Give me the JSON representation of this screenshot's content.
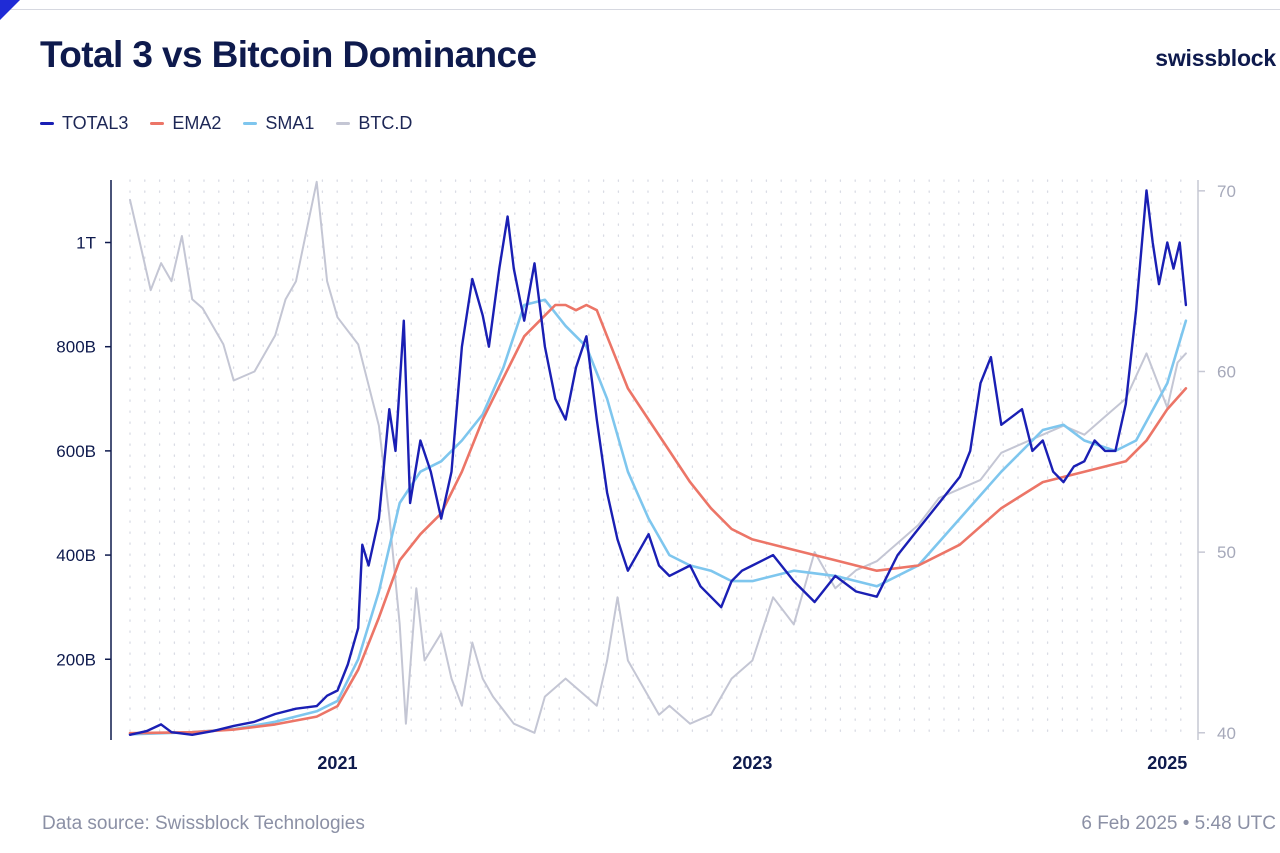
{
  "header": {
    "title": "Total 3 vs Bitcoin Dominance",
    "brand": "swissblock"
  },
  "footer": {
    "source": "Data source: Swissblock Technologies",
    "timestamp": "6 Feb 2025 • 5:48 UTC"
  },
  "colors": {
    "total3": "#1a1fb4",
    "ema2": "#ec7567",
    "sma1": "#7ec6ee",
    "btcd": "#c4c6d4"
  },
  "chart_data": {
    "type": "line",
    "title": "Total 3 vs Bitcoin Dominance",
    "legend_position": "top-left",
    "legend": [
      {
        "key": "total3",
        "label": "TOTAL3"
      },
      {
        "key": "ema2",
        "label": "EMA2"
      },
      {
        "key": "sma1",
        "label": "SMA1"
      },
      {
        "key": "btcd",
        "label": "BTC.D"
      }
    ],
    "x_range": [
      2020.0,
      2025.1
    ],
    "x_ticks": [
      {
        "value": 2021.0,
        "label": "2021"
      },
      {
        "value": 2023.0,
        "label": "2023"
      },
      {
        "value": 2025.0,
        "label": "2025"
      }
    ],
    "y_left": {
      "range": [
        45,
        1120
      ],
      "unit": "B USD",
      "ticks": [
        {
          "value": 200,
          "label": "200B"
        },
        {
          "value": 400,
          "label": "400B"
        },
        {
          "value": 600,
          "label": "600B"
        },
        {
          "value": 800,
          "label": "800B"
        },
        {
          "value": 1000,
          "label": "1T"
        }
      ]
    },
    "y_right": {
      "range": [
        39.6,
        70.6
      ],
      "unit": "%",
      "ticks": [
        {
          "value": 40,
          "label": "40"
        },
        {
          "value": 50,
          "label": "50"
        },
        {
          "value": 60,
          "label": "60"
        },
        {
          "value": 70,
          "label": "70"
        }
      ]
    },
    "series": [
      {
        "name": "TOTAL3",
        "key": "total3",
        "axis": "left",
        "points": [
          [
            2020.0,
            55
          ],
          [
            2020.08,
            62
          ],
          [
            2020.15,
            75
          ],
          [
            2020.2,
            60
          ],
          [
            2020.3,
            55
          ],
          [
            2020.4,
            62
          ],
          [
            2020.5,
            72
          ],
          [
            2020.6,
            80
          ],
          [
            2020.7,
            95
          ],
          [
            2020.8,
            105
          ],
          [
            2020.9,
            110
          ],
          [
            2020.95,
            130
          ],
          [
            2021.0,
            140
          ],
          [
            2021.05,
            190
          ],
          [
            2021.1,
            260
          ],
          [
            2021.12,
            420
          ],
          [
            2021.15,
            380
          ],
          [
            2021.2,
            470
          ],
          [
            2021.25,
            680
          ],
          [
            2021.28,
            600
          ],
          [
            2021.32,
            850
          ],
          [
            2021.35,
            500
          ],
          [
            2021.4,
            620
          ],
          [
            2021.45,
            560
          ],
          [
            2021.5,
            470
          ],
          [
            2021.55,
            560
          ],
          [
            2021.6,
            800
          ],
          [
            2021.65,
            930
          ],
          [
            2021.7,
            860
          ],
          [
            2021.73,
            800
          ],
          [
            2021.78,
            950
          ],
          [
            2021.82,
            1050
          ],
          [
            2021.85,
            950
          ],
          [
            2021.9,
            850
          ],
          [
            2021.95,
            960
          ],
          [
            2022.0,
            800
          ],
          [
            2022.05,
            700
          ],
          [
            2022.1,
            660
          ],
          [
            2022.15,
            760
          ],
          [
            2022.2,
            820
          ],
          [
            2022.25,
            660
          ],
          [
            2022.3,
            520
          ],
          [
            2022.35,
            430
          ],
          [
            2022.4,
            370
          ],
          [
            2022.5,
            440
          ],
          [
            2022.55,
            380
          ],
          [
            2022.6,
            360
          ],
          [
            2022.7,
            380
          ],
          [
            2022.75,
            340
          ],
          [
            2022.85,
            300
          ],
          [
            2022.9,
            350
          ],
          [
            2022.95,
            370
          ],
          [
            2023.0,
            380
          ],
          [
            2023.1,
            400
          ],
          [
            2023.2,
            350
          ],
          [
            2023.3,
            310
          ],
          [
            2023.4,
            360
          ],
          [
            2023.5,
            330
          ],
          [
            2023.6,
            320
          ],
          [
            2023.7,
            400
          ],
          [
            2023.8,
            450
          ],
          [
            2023.9,
            500
          ],
          [
            2024.0,
            550
          ],
          [
            2024.05,
            600
          ],
          [
            2024.1,
            730
          ],
          [
            2024.15,
            780
          ],
          [
            2024.2,
            650
          ],
          [
            2024.3,
            680
          ],
          [
            2024.35,
            600
          ],
          [
            2024.4,
            620
          ],
          [
            2024.45,
            560
          ],
          [
            2024.5,
            540
          ],
          [
            2024.55,
            570
          ],
          [
            2024.6,
            580
          ],
          [
            2024.65,
            620
          ],
          [
            2024.7,
            600
          ],
          [
            2024.75,
            600
          ],
          [
            2024.8,
            690
          ],
          [
            2024.85,
            870
          ],
          [
            2024.9,
            1100
          ],
          [
            2024.93,
            1000
          ],
          [
            2024.96,
            920
          ],
          [
            2025.0,
            1000
          ],
          [
            2025.03,
            950
          ],
          [
            2025.06,
            1000
          ],
          [
            2025.09,
            880
          ]
        ]
      },
      {
        "name": "EMA2",
        "key": "ema2",
        "axis": "left",
        "points": [
          [
            2020.0,
            58
          ],
          [
            2020.3,
            60
          ],
          [
            2020.5,
            65
          ],
          [
            2020.7,
            75
          ],
          [
            2020.9,
            90
          ],
          [
            2021.0,
            110
          ],
          [
            2021.1,
            180
          ],
          [
            2021.2,
            280
          ],
          [
            2021.3,
            390
          ],
          [
            2021.4,
            440
          ],
          [
            2021.5,
            480
          ],
          [
            2021.6,
            560
          ],
          [
            2021.7,
            660
          ],
          [
            2021.8,
            740
          ],
          [
            2021.9,
            820
          ],
          [
            2022.0,
            860
          ],
          [
            2022.05,
            880
          ],
          [
            2022.1,
            880
          ],
          [
            2022.15,
            870
          ],
          [
            2022.2,
            880
          ],
          [
            2022.25,
            870
          ],
          [
            2022.3,
            820
          ],
          [
            2022.4,
            720
          ],
          [
            2022.5,
            660
          ],
          [
            2022.6,
            600
          ],
          [
            2022.7,
            540
          ],
          [
            2022.8,
            490
          ],
          [
            2022.9,
            450
          ],
          [
            2023.0,
            430
          ],
          [
            2023.2,
            410
          ],
          [
            2023.4,
            390
          ],
          [
            2023.6,
            370
          ],
          [
            2023.8,
            380
          ],
          [
            2024.0,
            420
          ],
          [
            2024.2,
            490
          ],
          [
            2024.4,
            540
          ],
          [
            2024.6,
            560
          ],
          [
            2024.8,
            580
          ],
          [
            2024.9,
            620
          ],
          [
            2025.0,
            680
          ],
          [
            2025.09,
            720
          ]
        ]
      },
      {
        "name": "SMA1",
        "key": "sma1",
        "axis": "left",
        "points": [
          [
            2020.0,
            56
          ],
          [
            2020.3,
            60
          ],
          [
            2020.5,
            66
          ],
          [
            2020.7,
            80
          ],
          [
            2020.9,
            100
          ],
          [
            2021.0,
            120
          ],
          [
            2021.1,
            200
          ],
          [
            2021.2,
            330
          ],
          [
            2021.3,
            500
          ],
          [
            2021.4,
            560
          ],
          [
            2021.5,
            580
          ],
          [
            2021.6,
            620
          ],
          [
            2021.7,
            670
          ],
          [
            2021.8,
            760
          ],
          [
            2021.9,
            880
          ],
          [
            2022.0,
            890
          ],
          [
            2022.1,
            840
          ],
          [
            2022.2,
            800
          ],
          [
            2022.3,
            700
          ],
          [
            2022.4,
            560
          ],
          [
            2022.5,
            470
          ],
          [
            2022.6,
            400
          ],
          [
            2022.7,
            380
          ],
          [
            2022.8,
            370
          ],
          [
            2022.9,
            350
          ],
          [
            2023.0,
            350
          ],
          [
            2023.2,
            370
          ],
          [
            2023.4,
            360
          ],
          [
            2023.6,
            340
          ],
          [
            2023.8,
            380
          ],
          [
            2024.0,
            470
          ],
          [
            2024.2,
            560
          ],
          [
            2024.4,
            640
          ],
          [
            2024.5,
            650
          ],
          [
            2024.6,
            620
          ],
          [
            2024.75,
            600
          ],
          [
            2024.85,
            620
          ],
          [
            2025.0,
            730
          ],
          [
            2025.09,
            850
          ]
        ]
      },
      {
        "name": "BTC.D",
        "key": "btcd",
        "axis": "right",
        "points": [
          [
            2020.0,
            69.5
          ],
          [
            2020.05,
            67
          ],
          [
            2020.1,
            64.5
          ],
          [
            2020.15,
            66
          ],
          [
            2020.2,
            65
          ],
          [
            2020.25,
            67.5
          ],
          [
            2020.3,
            64
          ],
          [
            2020.35,
            63.5
          ],
          [
            2020.45,
            61.5
          ],
          [
            2020.5,
            59.5
          ],
          [
            2020.6,
            60
          ],
          [
            2020.7,
            62
          ],
          [
            2020.75,
            64
          ],
          [
            2020.8,
            65
          ],
          [
            2020.9,
            70.5
          ],
          [
            2020.95,
            65
          ],
          [
            2021.0,
            63
          ],
          [
            2021.1,
            61.5
          ],
          [
            2021.2,
            57
          ],
          [
            2021.25,
            52
          ],
          [
            2021.3,
            46
          ],
          [
            2021.33,
            40.5
          ],
          [
            2021.38,
            48
          ],
          [
            2021.42,
            44
          ],
          [
            2021.5,
            45.5
          ],
          [
            2021.55,
            43
          ],
          [
            2021.6,
            41.5
          ],
          [
            2021.65,
            45
          ],
          [
            2021.7,
            43
          ],
          [
            2021.75,
            42
          ],
          [
            2021.85,
            40.5
          ],
          [
            2021.95,
            40
          ],
          [
            2022.0,
            42
          ],
          [
            2022.1,
            43
          ],
          [
            2022.2,
            42
          ],
          [
            2022.25,
            41.5
          ],
          [
            2022.3,
            44
          ],
          [
            2022.35,
            47.5
          ],
          [
            2022.4,
            44
          ],
          [
            2022.5,
            42
          ],
          [
            2022.55,
            41
          ],
          [
            2022.6,
            41.5
          ],
          [
            2022.7,
            40.5
          ],
          [
            2022.8,
            41
          ],
          [
            2022.9,
            43
          ],
          [
            2023.0,
            44
          ],
          [
            2023.1,
            47.5
          ],
          [
            2023.2,
            46
          ],
          [
            2023.3,
            50
          ],
          [
            2023.4,
            48
          ],
          [
            2023.5,
            49
          ],
          [
            2023.6,
            49.5
          ],
          [
            2023.7,
            50.5
          ],
          [
            2023.8,
            51.5
          ],
          [
            2023.9,
            53
          ],
          [
            2024.0,
            53.5
          ],
          [
            2024.1,
            54
          ],
          [
            2024.2,
            55.5
          ],
          [
            2024.3,
            56
          ],
          [
            2024.4,
            56.5
          ],
          [
            2024.5,
            57
          ],
          [
            2024.6,
            56.5
          ],
          [
            2024.7,
            57.5
          ],
          [
            2024.8,
            58.5
          ],
          [
            2024.9,
            61
          ],
          [
            2024.95,
            59.5
          ],
          [
            2025.0,
            58
          ],
          [
            2025.05,
            60.5
          ],
          [
            2025.09,
            61
          ]
        ]
      }
    ]
  }
}
